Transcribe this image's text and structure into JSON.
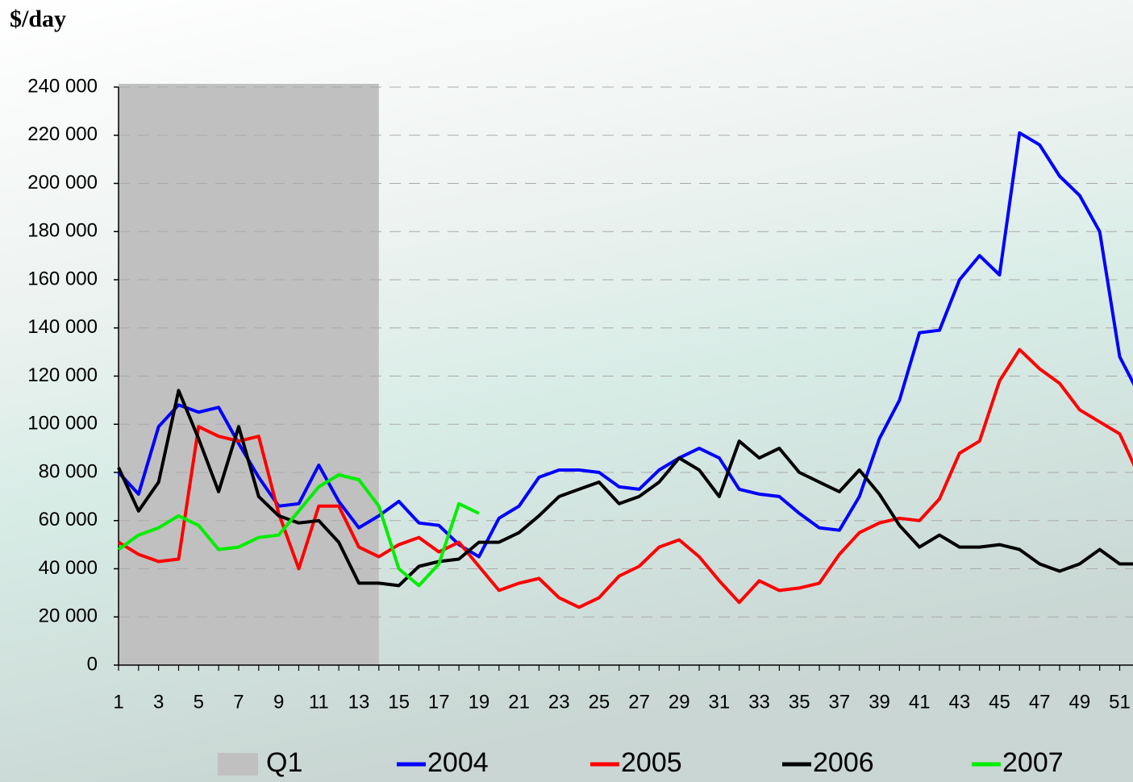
{
  "chart_data": {
    "type": "line",
    "title": "$/day",
    "x": [
      1,
      2,
      3,
      4,
      5,
      6,
      7,
      8,
      9,
      10,
      11,
      12,
      13,
      14,
      15,
      16,
      17,
      18,
      19,
      20,
      21,
      22,
      23,
      24,
      25,
      26,
      27,
      28,
      29,
      30,
      31,
      32,
      33,
      34,
      35,
      36,
      37,
      38,
      39,
      40,
      41,
      42,
      43,
      44,
      45,
      46,
      47,
      48,
      49,
      50,
      51,
      52
    ],
    "xlim": [
      1,
      52
    ],
    "xticks": [
      1,
      3,
      5,
      7,
      9,
      11,
      13,
      15,
      17,
      19,
      21,
      23,
      25,
      27,
      29,
      31,
      33,
      35,
      37,
      39,
      41,
      43,
      45,
      47,
      49,
      51
    ],
    "ylim": [
      0,
      240000
    ],
    "yticks": [
      0,
      {
        "value": 20000,
        "label": "20 000"
      },
      {
        "value": 40000,
        "label": "40 000"
      },
      {
        "value": 60000,
        "label": "60 000"
      },
      {
        "value": 80000,
        "label": "80 000"
      },
      {
        "value": 100000,
        "label": "100 000"
      },
      {
        "value": 120000,
        "label": "120 000"
      },
      {
        "value": 140000,
        "label": "140 000"
      },
      {
        "value": 160000,
        "label": "160 000"
      },
      {
        "value": 180000,
        "label": "180 000"
      },
      {
        "value": 200000,
        "label": "200 000"
      },
      {
        "value": 220000,
        "label": "220 000"
      },
      {
        "value": 240000,
        "label": "240 000"
      }
    ],
    "grid": true,
    "highlight": {
      "name": "Q1",
      "from": 1,
      "to": 14,
      "color": "#c0c0c0"
    },
    "series": [
      {
        "name": "2004",
        "color": "#0000ff",
        "values": [
          80000,
          71000,
          99000,
          108000,
          105000,
          107000,
          92000,
          78000,
          66000,
          67000,
          83000,
          68000,
          57000,
          62000,
          68000,
          59000,
          58000,
          50000,
          45000,
          61000,
          66000,
          78000,
          81000,
          81000,
          80000,
          74000,
          73000,
          81000,
          86000,
          90000,
          86000,
          73000,
          71000,
          70000,
          63000,
          57000,
          56000,
          70000,
          94000,
          110000,
          138000,
          139000,
          160000,
          170000,
          162000,
          221000,
          216000,
          203000,
          195000,
          180000,
          128000,
          112000
        ]
      },
      {
        "name": "2005",
        "color": "#ff0000",
        "values": [
          51000,
          46000,
          43000,
          44000,
          99000,
          95000,
          93000,
          95000,
          63000,
          40000,
          66000,
          66000,
          49000,
          45000,
          50000,
          53000,
          47000,
          51000,
          41000,
          31000,
          34000,
          36000,
          28000,
          24000,
          28000,
          37000,
          41000,
          49000,
          52000,
          45000,
          35000,
          26000,
          35000,
          31000,
          32000,
          34000,
          46000,
          55000,
          59000,
          61000,
          60000,
          69000,
          88000,
          93000,
          118000,
          131000,
          123000,
          117000,
          106000,
          101000,
          96000,
          78000
        ]
      },
      {
        "name": "2006",
        "color": "#000000",
        "values": [
          82000,
          64000,
          76000,
          114000,
          94000,
          72000,
          99000,
          70000,
          62000,
          59000,
          60000,
          51000,
          34000,
          34000,
          33000,
          41000,
          43000,
          44000,
          51000,
          51000,
          55000,
          62000,
          70000,
          73000,
          76000,
          67000,
          70000,
          76000,
          86000,
          81000,
          70000,
          93000,
          86000,
          90000,
          80000,
          76000,
          72000,
          81000,
          71000,
          58000,
          49000,
          54000,
          49000,
          49000,
          50000,
          48000,
          42000,
          39000,
          42000,
          48000,
          42000,
          42000
        ]
      },
      {
        "name": "2007",
        "color": "#00ee00",
        "values": [
          48000,
          54000,
          57000,
          62000,
          58000,
          48000,
          49000,
          53000,
          54000,
          64000,
          74000,
          79000,
          77000,
          66000,
          40000,
          33000,
          42000,
          67000,
          63000,
          null,
          null,
          null,
          null,
          null,
          null,
          null,
          null,
          null,
          null,
          null,
          null,
          null,
          null,
          null,
          null,
          null,
          null,
          null,
          null,
          null,
          null,
          null,
          null,
          null,
          null,
          null,
          null,
          null,
          null,
          null,
          null,
          null
        ]
      }
    ]
  }
}
